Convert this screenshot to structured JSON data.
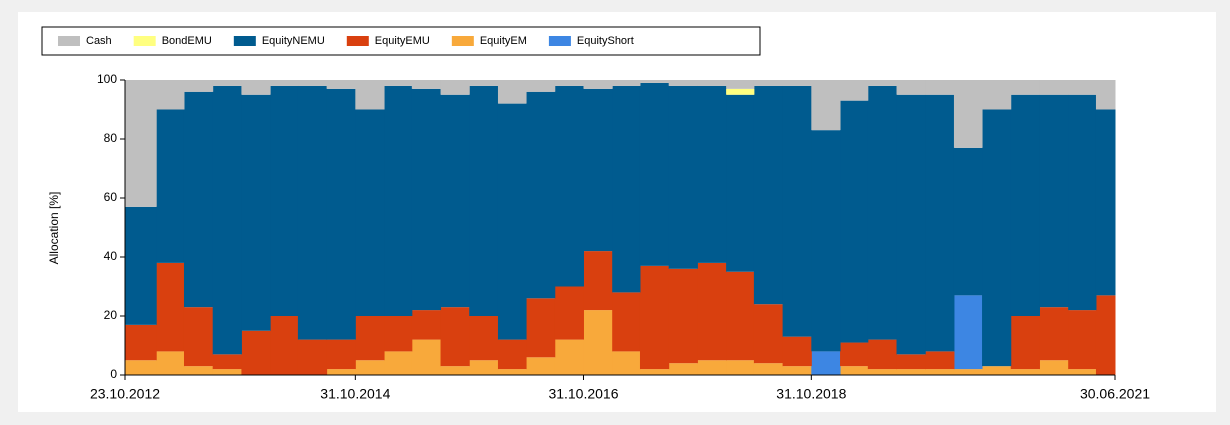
{
  "chart_data": {
    "type": "stacked_area",
    "y_label": "Allocation [%]",
    "x": [
      "2012-10-23",
      "2013-01-31",
      "2013-04-30",
      "2013-07-31",
      "2013-10-31",
      "2014-01-31",
      "2014-04-30",
      "2014-07-31",
      "2014-10-31",
      "2015-01-31",
      "2015-04-30",
      "2015-07-31",
      "2015-10-31",
      "2016-01-31",
      "2016-04-30",
      "2016-07-31",
      "2016-10-31",
      "2017-01-31",
      "2017-04-30",
      "2017-07-31",
      "2017-10-31",
      "2018-01-31",
      "2018-04-30",
      "2018-07-31",
      "2018-10-31",
      "2019-01-31",
      "2019-04-30",
      "2019-07-31",
      "2019-10-31",
      "2020-01-31",
      "2020-04-30",
      "2020-07-31",
      "2020-10-31",
      "2021-01-31",
      "2021-04-30"
    ],
    "series": [
      {
        "name": "Cash",
        "color": "#bfbfbf",
        "values": [
          43,
          10,
          4,
          2,
          5,
          2,
          2,
          3,
          10,
          2,
          3,
          5,
          2,
          8,
          4,
          2,
          3,
          2,
          1,
          2,
          2,
          3,
          2,
          2,
          17,
          7,
          2,
          5,
          5,
          23,
          10,
          5,
          5,
          5,
          10
        ]
      },
      {
        "name": "BondEMU",
        "color": "#ffff80",
        "values": [
          0,
          0,
          0,
          0,
          0,
          0,
          0,
          0,
          0,
          0,
          0,
          0,
          0,
          0,
          0,
          0,
          0,
          0,
          0,
          0,
          0,
          2,
          0,
          0,
          0,
          0,
          0,
          0,
          0,
          0,
          0,
          0,
          0,
          0,
          0
        ]
      },
      {
        "name": "EquityNEMU",
        "color": "#005b8f",
        "values": [
          40,
          52,
          73,
          91,
          80,
          78,
          86,
          85,
          70,
          78,
          75,
          72,
          78,
          80,
          70,
          68,
          55,
          70,
          62,
          62,
          60,
          60,
          74,
          85,
          75,
          82,
          86,
          88,
          87,
          50,
          87,
          75,
          72,
          73,
          63
        ]
      },
      {
        "name": "EquityEMU",
        "color": "#d9400f",
        "values": [
          12,
          30,
          20,
          5,
          15,
          20,
          12,
          10,
          15,
          12,
          10,
          20,
          15,
          10,
          20,
          18,
          20,
          20,
          35,
          32,
          33,
          30,
          20,
          10,
          0,
          8,
          10,
          5,
          6,
          0,
          0,
          18,
          18,
          20,
          27
        ]
      },
      {
        "name": "EquityEM",
        "color": "#f8a93b",
        "values": [
          5,
          8,
          3,
          2,
          0,
          0,
          0,
          2,
          5,
          8,
          12,
          3,
          5,
          2,
          6,
          12,
          22,
          8,
          2,
          4,
          5,
          5,
          4,
          3,
          0,
          3,
          2,
          2,
          2,
          2,
          3,
          2,
          5,
          2,
          0
        ]
      },
      {
        "name": "EquityShort",
        "color": "#3d86e3",
        "values": [
          0,
          0,
          0,
          0,
          0,
          0,
          0,
          0,
          0,
          0,
          0,
          0,
          0,
          0,
          0,
          0,
          0,
          0,
          0,
          0,
          0,
          0,
          0,
          0,
          8,
          0,
          0,
          0,
          0,
          25,
          0,
          0,
          0,
          0,
          0
        ]
      }
    ],
    "stack_order": [
      "EquityEM",
      "EquityShort",
      "EquityEMU",
      "EquityNEMU",
      "BondEMU",
      "Cash"
    ],
    "xlim": [
      "2012-10-23",
      "2021-06-30"
    ],
    "xticks": [
      {
        "value": "2012-10-23",
        "label": "23.10.2012"
      },
      {
        "value": "2014-10-31",
        "label": "31.10.2014"
      },
      {
        "value": "2016-10-31",
        "label": "31.10.2016"
      },
      {
        "value": "2018-10-31",
        "label": "31.10.2018"
      },
      {
        "value": "2021-06-30",
        "label": "30.06.2021"
      }
    ],
    "ylim": [
      0,
      100
    ],
    "yticks": [
      0,
      20,
      40,
      60,
      80,
      100
    ]
  }
}
